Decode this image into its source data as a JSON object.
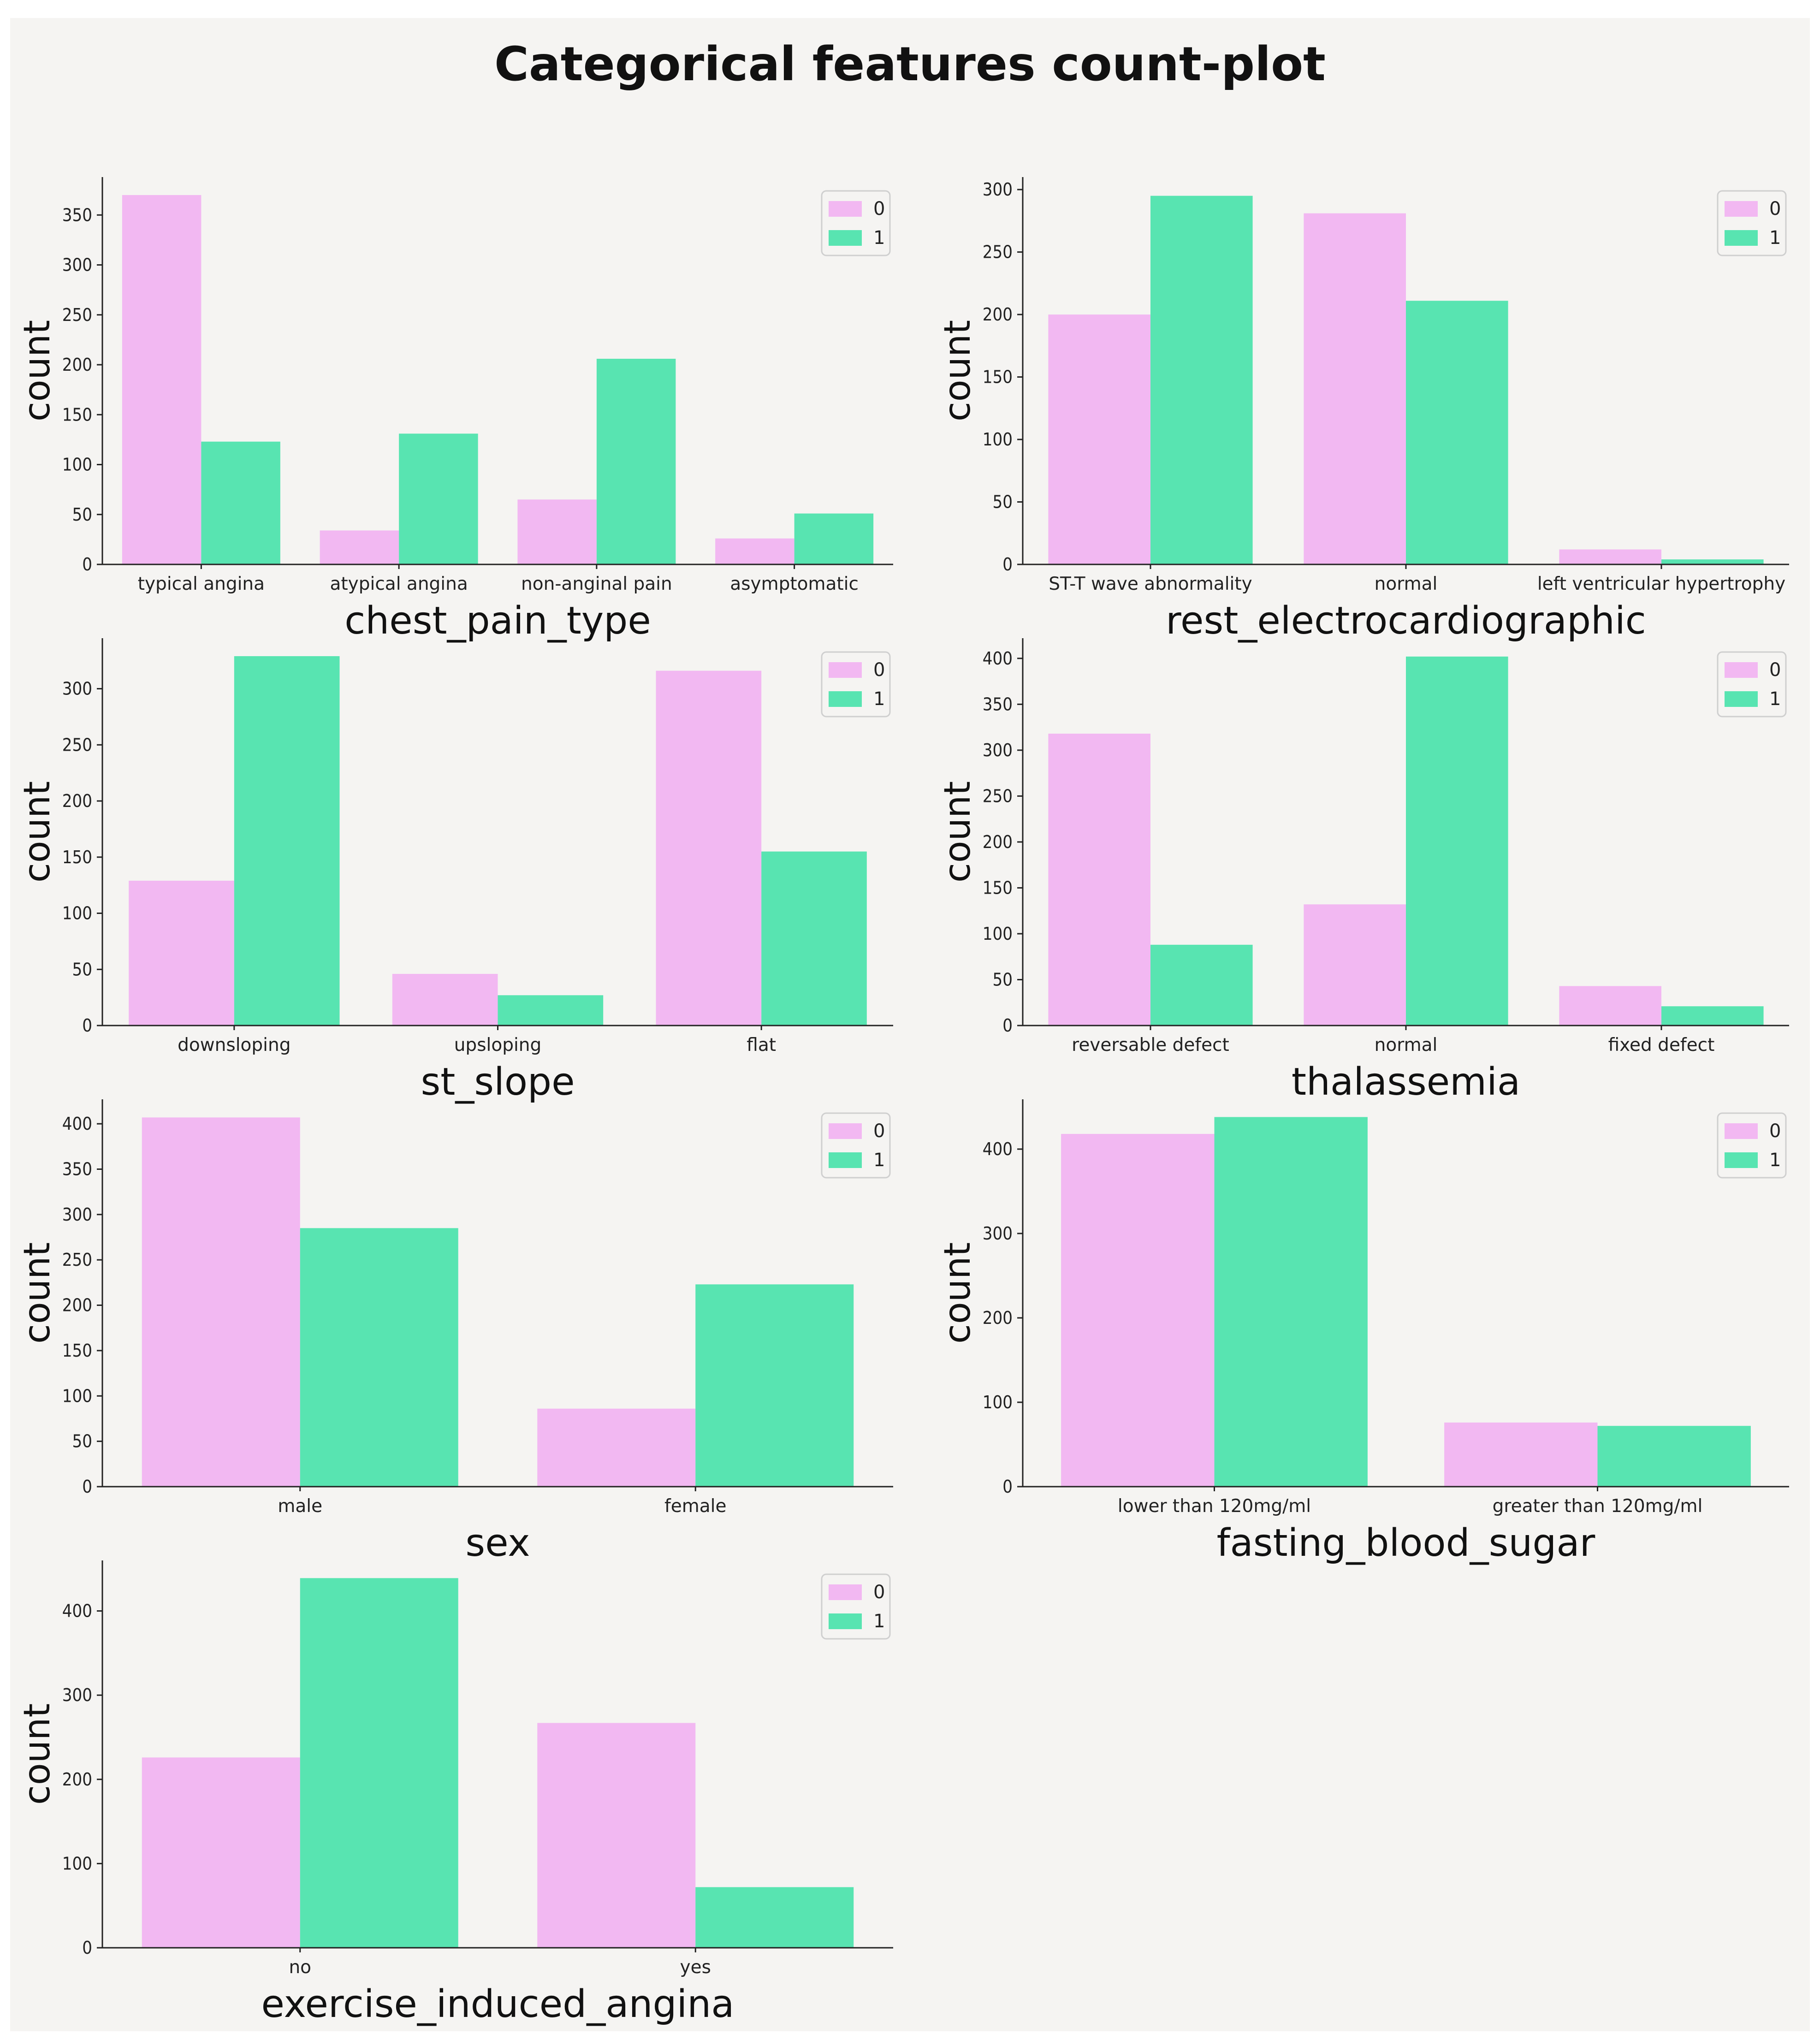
{
  "figure": {
    "title": "Categorical features count-plot",
    "colors": {
      "hue_0": "#f2b8f2",
      "hue_1": "#58e4b1",
      "background": "#f5f4f2"
    },
    "legend_labels": [
      "0",
      "1"
    ]
  },
  "chart_data": [
    {
      "type": "bar",
      "xlabel": "chest_pain_type",
      "ylabel": "count",
      "categories": [
        "typical angina",
        "atypical angina",
        "non-anginal pain",
        "asymptomatic"
      ],
      "series": [
        {
          "name": "0",
          "values": [
            370,
            34,
            65,
            26
          ]
        },
        {
          "name": "1",
          "values": [
            123,
            131,
            206,
            51
          ]
        }
      ],
      "yticks": [
        0,
        50,
        100,
        150,
        200,
        250,
        300,
        350
      ],
      "ylim": [
        0,
        388
      ],
      "legend": "top-right"
    },
    {
      "type": "bar",
      "xlabel": "rest_electrocardiographic",
      "ylabel": "count",
      "categories": [
        "ST-T wave abnormality",
        "normal",
        "left ventricular hypertrophy"
      ],
      "series": [
        {
          "name": "0",
          "values": [
            200,
            281,
            12
          ]
        },
        {
          "name": "1",
          "values": [
            295,
            211,
            4
          ]
        }
      ],
      "yticks": [
        0,
        50,
        100,
        150,
        200,
        250,
        300
      ],
      "ylim": [
        0,
        310
      ],
      "legend": "top-right"
    },
    {
      "type": "bar",
      "xlabel": "st_slope",
      "ylabel": "count",
      "categories": [
        "downsloping",
        "upsloping",
        "flat"
      ],
      "series": [
        {
          "name": "0",
          "values": [
            129,
            46,
            316
          ]
        },
        {
          "name": "1",
          "values": [
            329,
            27,
            155
          ]
        }
      ],
      "yticks": [
        0,
        50,
        100,
        150,
        200,
        250,
        300
      ],
      "ylim": [
        0,
        345
      ],
      "legend": "top-right"
    },
    {
      "type": "bar",
      "xlabel": "thalassemia",
      "ylabel": "count",
      "categories": [
        "reversable defect",
        "normal",
        "fixed defect"
      ],
      "series": [
        {
          "name": "0",
          "values": [
            318,
            132,
            43
          ]
        },
        {
          "name": "1",
          "values": [
            88,
            402,
            21
          ]
        }
      ],
      "yticks": [
        0,
        50,
        100,
        150,
        200,
        250,
        300,
        350,
        400
      ],
      "ylim": [
        0,
        422
      ],
      "legend": "top-right"
    },
    {
      "type": "bar",
      "xlabel": "sex",
      "ylabel": "count",
      "categories": [
        "male",
        "female"
      ],
      "series": [
        {
          "name": "0",
          "values": [
            407,
            86
          ]
        },
        {
          "name": "1",
          "values": [
            285,
            223
          ]
        }
      ],
      "yticks": [
        0,
        50,
        100,
        150,
        200,
        250,
        300,
        350,
        400
      ],
      "ylim": [
        0,
        427
      ],
      "legend": "top-right"
    },
    {
      "type": "bar",
      "xlabel": "fasting_blood_sugar",
      "ylabel": "count",
      "categories": [
        "lower than 120mg/ml",
        "greater than 120mg/ml"
      ],
      "series": [
        {
          "name": "0",
          "values": [
            418,
            76
          ]
        },
        {
          "name": "1",
          "values": [
            438,
            72
          ]
        }
      ],
      "yticks": [
        0,
        100,
        200,
        300,
        400
      ],
      "ylim": [
        0,
        459
      ],
      "legend": "top-right"
    },
    {
      "type": "bar",
      "xlabel": "exercise_induced_angina",
      "ylabel": "count",
      "categories": [
        "no",
        "yes"
      ],
      "series": [
        {
          "name": "0",
          "values": [
            226,
            267
          ]
        },
        {
          "name": "1",
          "values": [
            439,
            72
          ]
        }
      ],
      "yticks": [
        0,
        100,
        200,
        300,
        400
      ],
      "ylim": [
        0,
        460
      ],
      "legend": "top-right"
    }
  ]
}
